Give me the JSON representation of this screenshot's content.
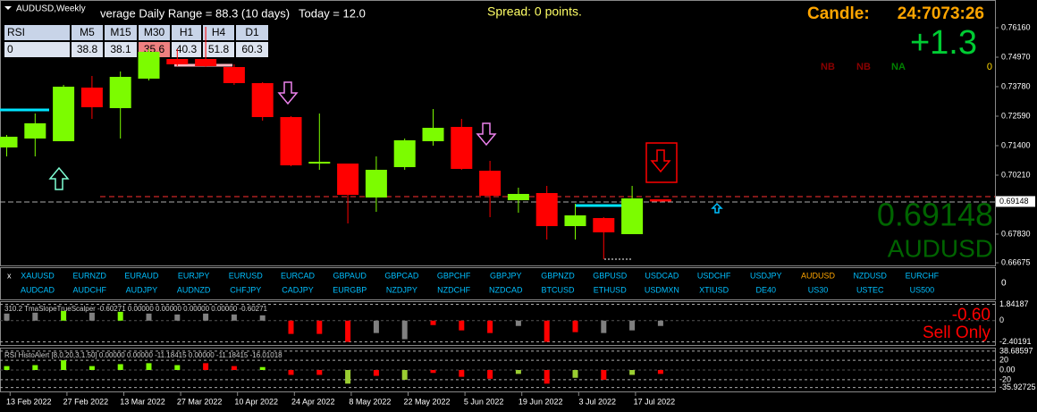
{
  "header": {
    "symbol": "AUDUSD,Weekly",
    "adr": "verage Daily Range = 88.3 (10 days)",
    "today": "Today = 12.0",
    "spread": "Spread: 0 points.",
    "candle_label": "Candle:",
    "candle_time": "24:7073:26",
    "change": "+1.3",
    "signals": [
      "NB",
      "NB",
      "NA"
    ],
    "signal_count": "0",
    "price_big": "0.69148",
    "symbol_big": "AUDUSD"
  },
  "rsi_table": {
    "headers": [
      "RSI",
      "M5",
      "M15",
      "M30",
      "H1",
      "H4",
      "D1"
    ],
    "row": [
      "0",
      "38.8",
      "38.1",
      "35.6",
      "40.3",
      "51.8",
      "60.3"
    ]
  },
  "symbols": {
    "close": "x",
    "row1": [
      "XAUUSD",
      "EURNZD",
      "EURAUD",
      "EURJPY",
      "EURUSD",
      "EURCAD",
      "GBPAUD",
      "GBPCAD",
      "GBPCHF",
      "GBPJPY",
      "GBPNZD",
      "GBPUSD",
      "USDCAD",
      "USDCHF",
      "USDJPY",
      "AUDUSD",
      "NZDUSD",
      "EURCHF"
    ],
    "row2": [
      "AUDCAD",
      "AUDCHF",
      "AUDJPY",
      "AUDNZD",
      "CHFJPY",
      "CADJPY",
      "EURGBP",
      "NZDJPY",
      "NZDCHF",
      "NZDCAD",
      "BTCUSD",
      "ETHUSD",
      "USDMXN",
      "XTIUSD",
      "DE40",
      "US30",
      "USTEC",
      "US500"
    ],
    "axis": "0"
  },
  "chart_data": [
    {
      "type": "candlestick",
      "categories": [
        null,
        "13 Feb 2022",
        null,
        "27 Feb 2022",
        null,
        "13 Mar 2022",
        null,
        "27 Mar 2022",
        null,
        "10 Apr 2022",
        null,
        "24 Apr 2022",
        null,
        "8 May 2022",
        null,
        "22 May 2022",
        null,
        "5 Jun 2022",
        null,
        "19 Jun 2022",
        null,
        "3 Jul 2022",
        null,
        "17 Jul 2022"
      ],
      "open": [
        0.71328,
        0.71689,
        0.7158,
        0.73744,
        0.72915,
        0.74105,
        0.74898,
        0.74898,
        0.74573,
        0.73924,
        0.72554,
        0.70679,
        0.70679,
        0.69309,
        0.70535,
        0.7158,
        0.72157,
        0.7039,
        0.69201,
        0.69489,
        0.68155,
        0.6848,
        0.6783,
        0.69237
      ],
      "high": [
        0.71832,
        0.72698,
        0.73852,
        0.74213,
        0.74393,
        0.75295,
        0.75295,
        0.76196,
        0.74682,
        0.7396,
        0.7259,
        0.72698,
        0.70679,
        0.70967,
        0.71689,
        0.72879,
        0.72482,
        0.70787,
        0.69705,
        0.69777,
        0.69056,
        0.68516,
        0.69777,
        0.69237
      ],
      "low": [
        0.70967,
        0.70967,
        0.7158,
        0.72482,
        0.71689,
        0.74032,
        0.7461,
        0.74573,
        0.73852,
        0.7241,
        0.70571,
        0.70427,
        0.68263,
        0.68732,
        0.70427,
        0.714,
        0.70427,
        0.68516,
        0.68696,
        0.67614,
        0.67614,
        0.6682,
        0.6783,
        0.69128
      ],
      "close": [
        0.71761,
        0.72302,
        0.7378,
        0.72951,
        0.74177,
        0.75186,
        0.74682,
        0.7461,
        0.73924,
        0.72554,
        0.70607,
        0.70751,
        0.69417,
        0.70427,
        0.71617,
        0.72121,
        0.70463,
        0.69381,
        0.69453,
        0.68155,
        0.68588,
        0.67903,
        0.69273,
        0.69148
      ],
      "up_color": "#7cfc00",
      "down_color": "#ff0000",
      "ylim": [
        0.66568,
        0.77278
      ],
      "yticks": [
        {
          "value": 0.7616,
          "label": "0.76160"
        },
        {
          "value": 0.7497,
          "label": "0.74970"
        },
        {
          "value": 0.7378,
          "label": "0.73780"
        },
        {
          "value": 0.7259,
          "label": "0.72590"
        },
        {
          "value": 0.714,
          "label": "0.71400"
        },
        {
          "value": 0.7021,
          "label": "0.70210"
        },
        {
          "value": 0.6783,
          "label": "0.67830"
        },
        {
          "value": 0.66675,
          "label": "0.66675"
        }
      ],
      "last_price": {
        "value": 0.69148,
        "label": "0.69148"
      }
    },
    {
      "type": "histogram-panel",
      "title": "310.2 TmaSlopeTrueScalper -0.60271 0.00000 0.00000 0.00000 0.00000 -0.60271",
      "notes": [
        "-0.60",
        "Sell Only"
      ],
      "values": [
        0.8,
        0.9,
        1.1,
        0.9,
        1.0,
        0.8,
        0.7,
        0.8,
        0.7,
        0.6,
        -1.5,
        -1.5,
        -2.4,
        -1.4,
        -2.1,
        -0.5,
        -1.1,
        -1.4,
        -0.6,
        -2.4,
        -1.3,
        -1.4,
        -1.1,
        -0.6
      ],
      "colors": [
        "#808080",
        "#808080",
        "#7cfc00",
        "#808080",
        "#7cfc00",
        "#808080",
        "#808080",
        "#808080",
        "#808080",
        "#808080",
        "#ff0000",
        "#ff0000",
        "#ff0000",
        "#808080",
        "#808080",
        "#ff0000",
        "#ff0000",
        "#ff0000",
        "#808080",
        "#ff0000",
        "#ff0000",
        "#808080",
        "#808080",
        "#808080"
      ],
      "ylim": [
        -2.75,
        2.1
      ],
      "yticks": [
        1.84187,
        0,
        -2.40191
      ]
    },
    {
      "type": "histogram-panel",
      "title": "RSI HistoAlert [8,0,20,3,1.50] 0.00000 0.00000 -11.18415 0.00000 -11.18415 -16.01018",
      "values": [
        8,
        10,
        20,
        8,
        12,
        14,
        10,
        14,
        8,
        6,
        -10,
        -10,
        -28,
        -12,
        -20,
        -6,
        -14,
        -18,
        -8,
        -28,
        -16,
        -20,
        -10,
        -8
      ],
      "colors": [
        "#7cfc00",
        "#7cfc00",
        "#7cfc00",
        "#7cfc00",
        "#7cfc00",
        "#7cfc00",
        "#7cfc00",
        "#ff0000",
        "#ff0000",
        "#7cfc00",
        "#ff0000",
        "#ff0000",
        "#9acd32",
        "#ff0000",
        "#9acd32",
        "#ff0000",
        "#ff0000",
        "#ff0000",
        "#9acd32",
        "#ff0000",
        "#9acd32",
        "#ff0000",
        "#9acd32",
        "#ff0000"
      ],
      "ylim": [
        -44,
        44
      ],
      "yticks": [
        38.68597,
        20,
        {
          "value": 0,
          "label": "0.00"
        },
        -20,
        -35.92725
      ]
    }
  ]
}
